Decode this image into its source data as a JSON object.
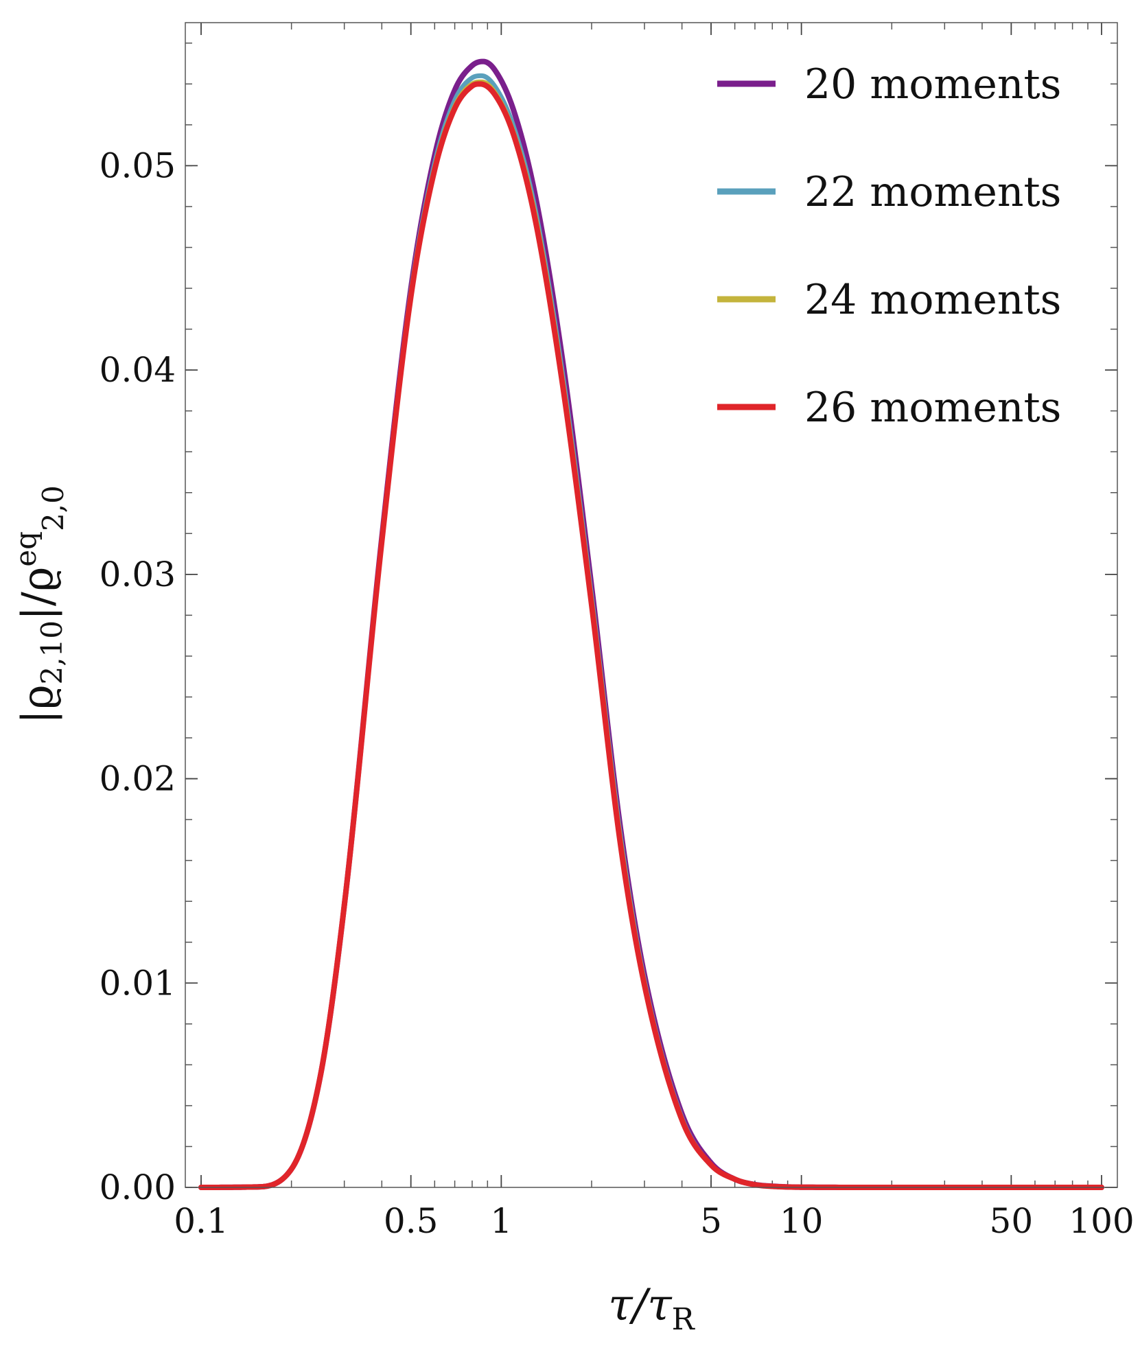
{
  "chart_data": {
    "type": "line",
    "xscale": "log",
    "xlim": [
      0.1,
      100
    ],
    "ylim": [
      0,
      0.057
    ],
    "x_ticks": [
      {
        "value": 0.1,
        "label": "0.1"
      },
      {
        "value": 0.5,
        "label": "0.5"
      },
      {
        "value": 1,
        "label": "1"
      },
      {
        "value": 5,
        "label": "5"
      },
      {
        "value": 10,
        "label": "10"
      },
      {
        "value": 50,
        "label": "50"
      },
      {
        "value": 100,
        "label": "100"
      }
    ],
    "y_ticks": [
      {
        "value": 0.0,
        "label": "0.00"
      },
      {
        "value": 0.01,
        "label": "0.01"
      },
      {
        "value": 0.02,
        "label": "0.02"
      },
      {
        "value": 0.03,
        "label": "0.03"
      },
      {
        "value": 0.04,
        "label": "0.04"
      },
      {
        "value": 0.05,
        "label": "0.05"
      }
    ],
    "xlabel": {
      "main": "τ/τ",
      "sub": "R"
    },
    "ylabel": {
      "p1": "|ϱ",
      "sub1": "2,10",
      "p2": "|/ϱ",
      "sup": "eq",
      "sub2": "2,0"
    },
    "legend_position": "top-right",
    "grid": false,
    "series": [
      {
        "name": "20 moments",
        "color": "#7a1f8c",
        "x": [
          0.1,
          0.15,
          0.2,
          0.25,
          0.3,
          0.4,
          0.5,
          0.6,
          0.7,
          0.8,
          0.87,
          0.95,
          1.1,
          1.3,
          1.6,
          2,
          2.5,
          3,
          4,
          5,
          6,
          7,
          8,
          10,
          20,
          50,
          100
        ],
        "y": [
          0,
          2e-05,
          0.0009,
          0.0055,
          0.0138,
          0.0318,
          0.044,
          0.0505,
          0.0537,
          0.0549,
          0.0551,
          0.0547,
          0.0527,
          0.0485,
          0.0405,
          0.0294,
          0.0175,
          0.0104,
          0.0036,
          0.0012,
          0.0004,
          0.00014,
          6e-05,
          1e-05,
          0,
          0,
          0
        ]
      },
      {
        "name": "22 moments",
        "color": "#5aa0bc",
        "x": [
          0.1,
          0.15,
          0.2,
          0.25,
          0.3,
          0.4,
          0.5,
          0.6,
          0.7,
          0.8,
          0.86,
          0.95,
          1.1,
          1.3,
          1.6,
          2,
          2.5,
          3,
          4,
          5,
          6,
          7,
          8,
          10,
          20,
          50,
          100
        ],
        "y": [
          0,
          2e-05,
          0.0009,
          0.0055,
          0.0138,
          0.0317,
          0.0438,
          0.0501,
          0.0532,
          0.0543,
          0.0544,
          0.0539,
          0.0519,
          0.0478,
          0.0398,
          0.0289,
          0.0171,
          0.0101,
          0.0034,
          0.0011,
          0.0004,
          0.00013,
          5e-05,
          1e-05,
          0,
          0,
          0
        ]
      },
      {
        "name": "24 moments",
        "color": "#c4b43c",
        "x": [
          0.1,
          0.15,
          0.2,
          0.25,
          0.3,
          0.4,
          0.5,
          0.6,
          0.7,
          0.8,
          0.86,
          0.95,
          1.1,
          1.3,
          1.6,
          2,
          2.5,
          3,
          4,
          5,
          6,
          7,
          8,
          10,
          20,
          50,
          100
        ],
        "y": [
          0,
          2e-05,
          0.0009,
          0.0055,
          0.0138,
          0.0316,
          0.0437,
          0.0499,
          0.0529,
          0.054,
          0.0541,
          0.0536,
          0.0516,
          0.0475,
          0.0395,
          0.0287,
          0.0169,
          0.01,
          0.0033,
          0.0011,
          0.0004,
          0.00013,
          5e-05,
          1e-05,
          0,
          0,
          0
        ]
      },
      {
        "name": "26 moments",
        "color": "#e0252a",
        "x": [
          0.1,
          0.15,
          0.2,
          0.25,
          0.3,
          0.4,
          0.5,
          0.6,
          0.7,
          0.8,
          0.85,
          0.95,
          1.1,
          1.3,
          1.6,
          2,
          2.5,
          3,
          4,
          5,
          6,
          7,
          8,
          10,
          20,
          50,
          100
        ],
        "y": [
          0,
          2e-05,
          0.0009,
          0.0055,
          0.0138,
          0.0316,
          0.0436,
          0.0498,
          0.0528,
          0.0539,
          0.054,
          0.0535,
          0.0515,
          0.0473,
          0.0393,
          0.0285,
          0.0167,
          0.0099,
          0.0033,
          0.0011,
          0.0004,
          0.00013,
          5e-05,
          1e-05,
          0,
          0,
          0
        ]
      }
    ]
  }
}
